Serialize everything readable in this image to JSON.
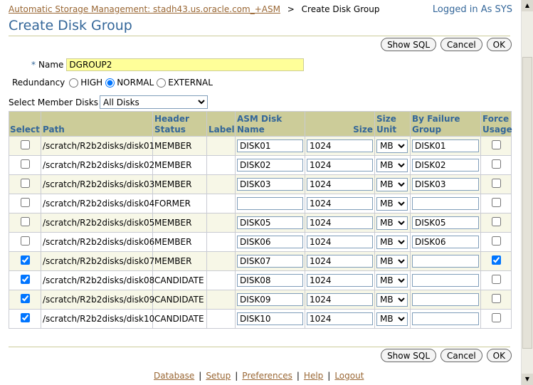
{
  "breadcrumb": {
    "link": "Automatic Storage Management: stadh43.us.oracle.com_+ASM",
    "separator": ">",
    "current": "Create Disk Group"
  },
  "login": "Logged in As SYS",
  "title": "Create Disk Group",
  "buttons": [
    "Show SQL",
    "Cancel",
    "OK"
  ],
  "name": {
    "required": "*",
    "label": "Name",
    "value": "DGROUP2"
  },
  "redundancy": {
    "label": "Redundancy",
    "options": [
      "HIGH",
      "NORMAL",
      "EXTERNAL"
    ],
    "selected": 1
  },
  "member_disks": {
    "label": "Select Member Disks",
    "value": "All Disks"
  },
  "table": {
    "headers": [
      "Select",
      "Path",
      "Header Status",
      "Label",
      "ASM Disk Name",
      "Size",
      "Size Unit",
      "By Failure Group",
      "Force Usage"
    ],
    "rows": [
      {
        "selected": false,
        "path": "/scratch/R2b2disks/disk01",
        "status": "MEMBER",
        "disk_name": "DISK01",
        "size": 1024,
        "unit": "MB",
        "failure_group": "DISK01",
        "force": false
      },
      {
        "selected": false,
        "path": "/scratch/R2b2disks/disk02",
        "status": "MEMBER",
        "disk_name": "DISK02",
        "size": 1024,
        "unit": "MB",
        "failure_group": "DISK02",
        "force": false
      },
      {
        "selected": false,
        "path": "/scratch/R2b2disks/disk03",
        "status": "MEMBER",
        "disk_name": "DISK03",
        "size": 1024,
        "unit": "MB",
        "failure_group": "DISK03",
        "force": false
      },
      {
        "selected": false,
        "path": "/scratch/R2b2disks/disk04",
        "status": "FORMER",
        "size": 1024,
        "unit": "MB",
        "force": false
      },
      {
        "selected": false,
        "path": "/scratch/R2b2disks/disk05",
        "status": "MEMBER",
        "disk_name": "DISK05",
        "size": 1024,
        "unit": "MB",
        "failure_group": "DISK05",
        "force": false
      },
      {
        "selected": false,
        "path": "/scratch/R2b2disks/disk06",
        "status": "MEMBER",
        "disk_name": "DISK06",
        "size": 1024,
        "unit": "MB",
        "failure_group": "DISK06",
        "force": false
      },
      {
        "selected": true,
        "path": "/scratch/R2b2disks/disk07",
        "status": "MEMBER",
        "disk_name": "DISK07",
        "size": 1024,
        "unit": "MB",
        "force": true
      },
      {
        "selected": true,
        "path": "/scratch/R2b2disks/disk08",
        "status": "CANDIDATE",
        "disk_name": "DISK08",
        "size": 1024,
        "unit": "MB",
        "force": false
      },
      {
        "selected": true,
        "path": "/scratch/R2b2disks/disk09",
        "status": "CANDIDATE",
        "disk_name": "DISK09",
        "size": 1024,
        "unit": "MB",
        "force": false
      },
      {
        "selected": true,
        "path": "/scratch/R2b2disks/disk10",
        "status": "CANDIDATE",
        "disk_name": "DISK10",
        "size": 1024,
        "unit": "MB",
        "force": false
      }
    ]
  },
  "footer_links": [
    "Database",
    "Setup",
    "Preferences",
    "Help",
    "Logout"
  ]
}
